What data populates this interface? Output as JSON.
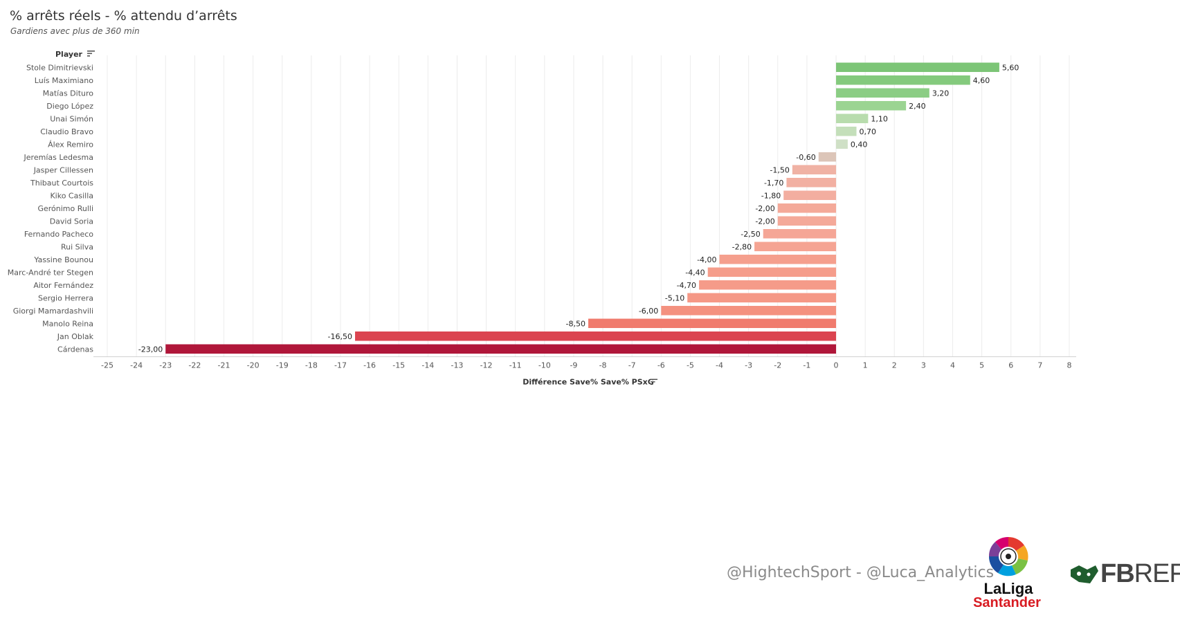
{
  "title": "% arrêts réels - % attendu d’arrêts",
  "subtitle": "Gardiens avec plus de 360 min",
  "y_header": "Player",
  "credit": "@HightechSport - @Luca_Analytics",
  "logos": {
    "laliga_top": "LaLiga",
    "laliga_bottom": "Santander",
    "fbref_bold": "FB",
    "fbref_light": "REF"
  },
  "chart_data": {
    "type": "bar",
    "orientation": "horizontal",
    "title": "% arrêts réels - % attendu d’arrêts",
    "subtitle": "Gardiens avec plus de 360 min",
    "xlabel": "Différence Save% Save% PSxG",
    "ylabel": "Player",
    "xlim": [
      -25,
      8
    ],
    "xticks": [
      -25,
      -24,
      -23,
      -22,
      -21,
      -20,
      -19,
      -18,
      -17,
      -16,
      -15,
      -14,
      -13,
      -12,
      -11,
      -10,
      -9,
      -8,
      -7,
      -6,
      -5,
      -4,
      -3,
      -2,
      -1,
      0,
      1,
      2,
      3,
      4,
      5,
      6,
      7,
      8
    ],
    "categories": [
      "Stole Dimitrievski",
      "Luís Maximiano",
      "Matías Dituro",
      "Diego López",
      "Unai Simón",
      "Claudio Bravo",
      "Álex Remiro",
      "Jeremías Ledesma",
      "Jasper Cillessen",
      "Thibaut Courtois",
      "Kiko Casilla",
      "Gerónimo Rulli",
      "David Soria",
      "Fernando Pacheco",
      "Rui Silva",
      "Yassine Bounou",
      "Marc-André ter Stegen",
      "Aitor Fernández",
      "Sergio Herrera",
      "Giorgi Mamardashvili",
      "Manolo Reina",
      "Jan Oblak",
      "Cárdenas"
    ],
    "values": [
      5.6,
      4.6,
      3.2,
      2.4,
      1.1,
      0.7,
      0.4,
      -0.6,
      -1.5,
      -1.7,
      -1.8,
      -2.0,
      -2.0,
      -2.5,
      -2.8,
      -4.0,
      -4.4,
      -4.7,
      -5.1,
      -6.0,
      -8.5,
      -16.5,
      -23.0
    ],
    "labels": [
      "5,60",
      "4,60",
      "3,20",
      "2,40",
      "1,10",
      "0,70",
      "0,40",
      "-0,60",
      "-1,50",
      "-1,70",
      "-1,80",
      "-2,00",
      "-2,00",
      "-2,50",
      "-2,80",
      "-4,00",
      "-4,40",
      "-4,70",
      "-5,10",
      "-6,00",
      "-8,50",
      "-16,50",
      "-23,00"
    ],
    "colors": [
      "#7cc576",
      "#84ca7d",
      "#8bcd84",
      "#9bd492",
      "#b8dcad",
      "#c4dfba",
      "#cfe0c6",
      "#dcc5b8",
      "#f0b2a4",
      "#f2b0a2",
      "#f3aea0",
      "#f4a999",
      "#f4a999",
      "#f5a696",
      "#f5a493",
      "#f59f8d",
      "#f59d8b",
      "#f59b89",
      "#f59886",
      "#f4917f",
      "#f07b6d",
      "#db4450",
      "#b0173a"
    ]
  }
}
